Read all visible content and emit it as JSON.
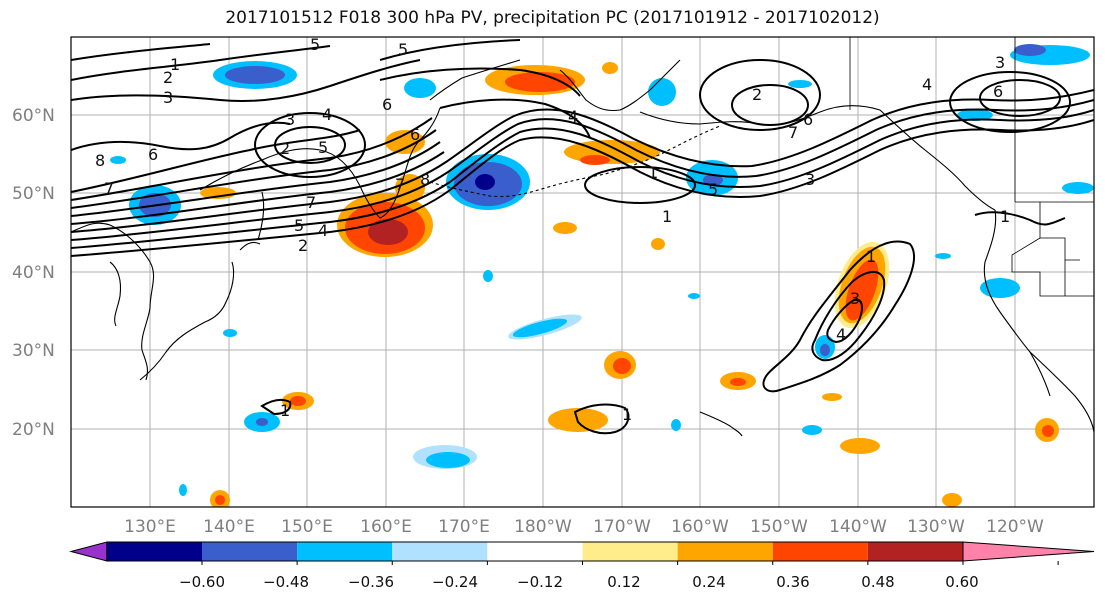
{
  "title": "2017101512 F018 300 hPa PV, precipitation PC (2017101912 - 2017102012)",
  "axes": {
    "lon_labels": [
      "130°E",
      "140°E",
      "150°E",
      "160°E",
      "170°E",
      "180°W",
      "170°W",
      "160°W",
      "150°W",
      "140°W",
      "130°W",
      "120°W"
    ],
    "lat_labels": [
      "60°N",
      "50°N",
      "40°N",
      "30°N",
      "20°N"
    ],
    "lon_range": [
      "120°E",
      "250°E (110°W)"
    ],
    "lat_range": [
      10,
      70
    ],
    "grid": true
  },
  "colorbar": {
    "ticks": [
      "−0.60",
      "−0.48",
      "−0.36",
      "−0.24",
      "−0.12",
      "0.12",
      "0.24",
      "0.36",
      "0.48",
      "0.60"
    ],
    "colors": [
      "#9932CC",
      "#00008B",
      "#3A5FCD",
      "#00BFFF",
      "#B0E2FF",
      "#FFFFFF",
      "#FFEC8B",
      "#FFA500",
      "#FF4500",
      "#B22222",
      "#FF82AB"
    ],
    "extend": "both"
  },
  "pv_contours": {
    "labels": [
      "1",
      "2",
      "3",
      "4",
      "5",
      "6",
      "7",
      "8"
    ]
  },
  "colors": {
    "land_outline": "#000000",
    "contour": "#000000",
    "grid": "#b0b0b0",
    "tick_label": "#7f7f7f"
  }
}
